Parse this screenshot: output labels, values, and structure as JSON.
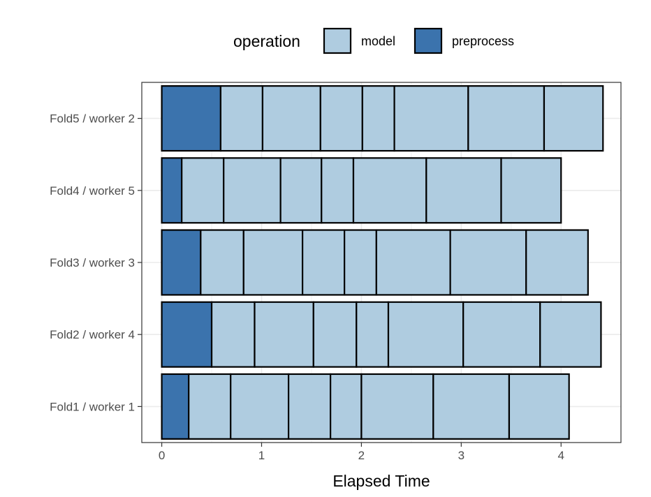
{
  "chart_data": {
    "type": "bar",
    "orientation": "horizontal",
    "stacked": true,
    "xlabel": "Elapsed Time",
    "ylabel": "",
    "xlim": [
      -0.2,
      4.6
    ],
    "x_ticks": [
      "0",
      "1",
      "2",
      "3",
      "4"
    ],
    "categories": [
      "Fold1 / worker 1",
      "Fold2 / worker 4",
      "Fold3 / worker 3",
      "Fold4 / worker 5",
      "Fold5 / worker 2"
    ],
    "legend": {
      "title": "operation",
      "position": "top",
      "entries": [
        {
          "label": "model",
          "color": "#afcce0"
        },
        {
          "label": "preprocess",
          "color": "#3b73ad"
        }
      ]
    },
    "grid": true,
    "bars": [
      {
        "category": "Fold1 / worker 1",
        "segments": [
          {
            "operation": "preprocess",
            "start": 0,
            "end": 0.27
          },
          {
            "operation": "model",
            "start": 0.27,
            "end": 0.69
          },
          {
            "operation": "model",
            "start": 0.69,
            "end": 1.27
          },
          {
            "operation": "model",
            "start": 1.27,
            "end": 1.69
          },
          {
            "operation": "model",
            "start": 1.69,
            "end": 2.0
          },
          {
            "operation": "model",
            "start": 2.0,
            "end": 2.72
          },
          {
            "operation": "model",
            "start": 2.72,
            "end": 3.48
          },
          {
            "operation": "model",
            "start": 3.48,
            "end": 4.08
          }
        ]
      },
      {
        "category": "Fold2 / worker 4",
        "segments": [
          {
            "operation": "preprocess",
            "start": 0,
            "end": 0.5
          },
          {
            "operation": "model",
            "start": 0.5,
            "end": 0.93
          },
          {
            "operation": "model",
            "start": 0.93,
            "end": 1.52
          },
          {
            "operation": "model",
            "start": 1.52,
            "end": 1.95
          },
          {
            "operation": "model",
            "start": 1.95,
            "end": 2.27
          },
          {
            "operation": "model",
            "start": 2.27,
            "end": 3.02
          },
          {
            "operation": "model",
            "start": 3.02,
            "end": 3.79
          },
          {
            "operation": "model",
            "start": 3.79,
            "end": 4.4
          }
        ]
      },
      {
        "category": "Fold3 / worker 3",
        "segments": [
          {
            "operation": "preprocess",
            "start": 0,
            "end": 0.39
          },
          {
            "operation": "model",
            "start": 0.39,
            "end": 0.82
          },
          {
            "operation": "model",
            "start": 0.82,
            "end": 1.41
          },
          {
            "operation": "model",
            "start": 1.41,
            "end": 1.83
          },
          {
            "operation": "model",
            "start": 1.83,
            "end": 2.15
          },
          {
            "operation": "model",
            "start": 2.15,
            "end": 2.89
          },
          {
            "operation": "model",
            "start": 2.89,
            "end": 3.65
          },
          {
            "operation": "model",
            "start": 3.65,
            "end": 4.27
          }
        ]
      },
      {
        "category": "Fold4 / worker 5",
        "segments": [
          {
            "operation": "preprocess",
            "start": 0,
            "end": 0.2
          },
          {
            "operation": "model",
            "start": 0.2,
            "end": 0.62
          },
          {
            "operation": "model",
            "start": 0.62,
            "end": 1.19
          },
          {
            "operation": "model",
            "start": 1.19,
            "end": 1.6
          },
          {
            "operation": "model",
            "start": 1.6,
            "end": 1.92
          },
          {
            "operation": "model",
            "start": 1.92,
            "end": 2.65
          },
          {
            "operation": "model",
            "start": 2.65,
            "end": 3.4
          },
          {
            "operation": "model",
            "start": 3.4,
            "end": 4.0
          }
        ]
      },
      {
        "category": "Fold5 / worker 2",
        "segments": [
          {
            "operation": "preprocess",
            "start": 0,
            "end": 0.59
          },
          {
            "operation": "model",
            "start": 0.59,
            "end": 1.01
          },
          {
            "operation": "model",
            "start": 1.01,
            "end": 1.59
          },
          {
            "operation": "model",
            "start": 1.59,
            "end": 2.01
          },
          {
            "operation": "model",
            "start": 2.01,
            "end": 2.33
          },
          {
            "operation": "model",
            "start": 2.33,
            "end": 3.07
          },
          {
            "operation": "model",
            "start": 3.07,
            "end": 3.83
          },
          {
            "operation": "model",
            "start": 3.83,
            "end": 4.42
          }
        ]
      }
    ]
  }
}
